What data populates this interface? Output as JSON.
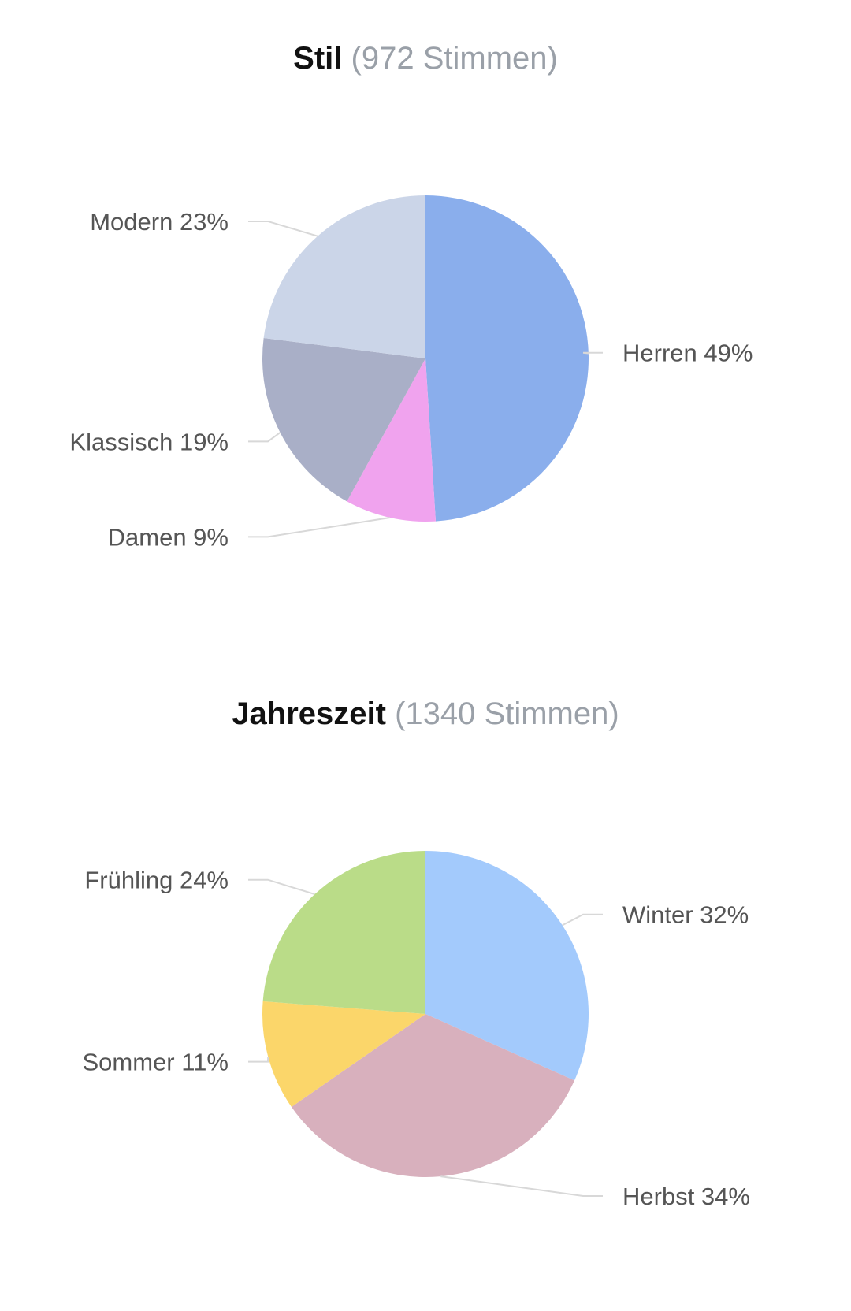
{
  "chart_data": [
    {
      "type": "pie",
      "title": "Stil",
      "subtitle": "(972 Stimmen)",
      "slices": [
        {
          "name": "Herren",
          "value": 49,
          "label": "Herren 49%",
          "color": "#8aaeec"
        },
        {
          "name": "Damen",
          "value": 9,
          "label": "Damen 9%",
          "color": "#f0a3ee"
        },
        {
          "name": "Klassisch",
          "value": 19,
          "label": "Klassisch 19%",
          "color": "#a9afc7"
        },
        {
          "name": "Modern",
          "value": 23,
          "label": "Modern 23%",
          "color": "#cbd5e8"
        }
      ]
    },
    {
      "type": "pie",
      "title": "Jahreszeit",
      "subtitle": "(1340 Stimmen)",
      "slices": [
        {
          "name": "Winter",
          "value": 32,
          "label": "Winter 32%",
          "color": "#a3cafc"
        },
        {
          "name": "Herbst",
          "value": 34,
          "label": "Herbst 34%",
          "color": "#d8b0bd"
        },
        {
          "name": "Sommer",
          "value": 11,
          "label": "Sommer 11%",
          "color": "#fbd66a"
        },
        {
          "name": "Frühling",
          "value": 24,
          "label": "Frühling 24%",
          "color": "#badc88"
        }
      ]
    }
  ]
}
